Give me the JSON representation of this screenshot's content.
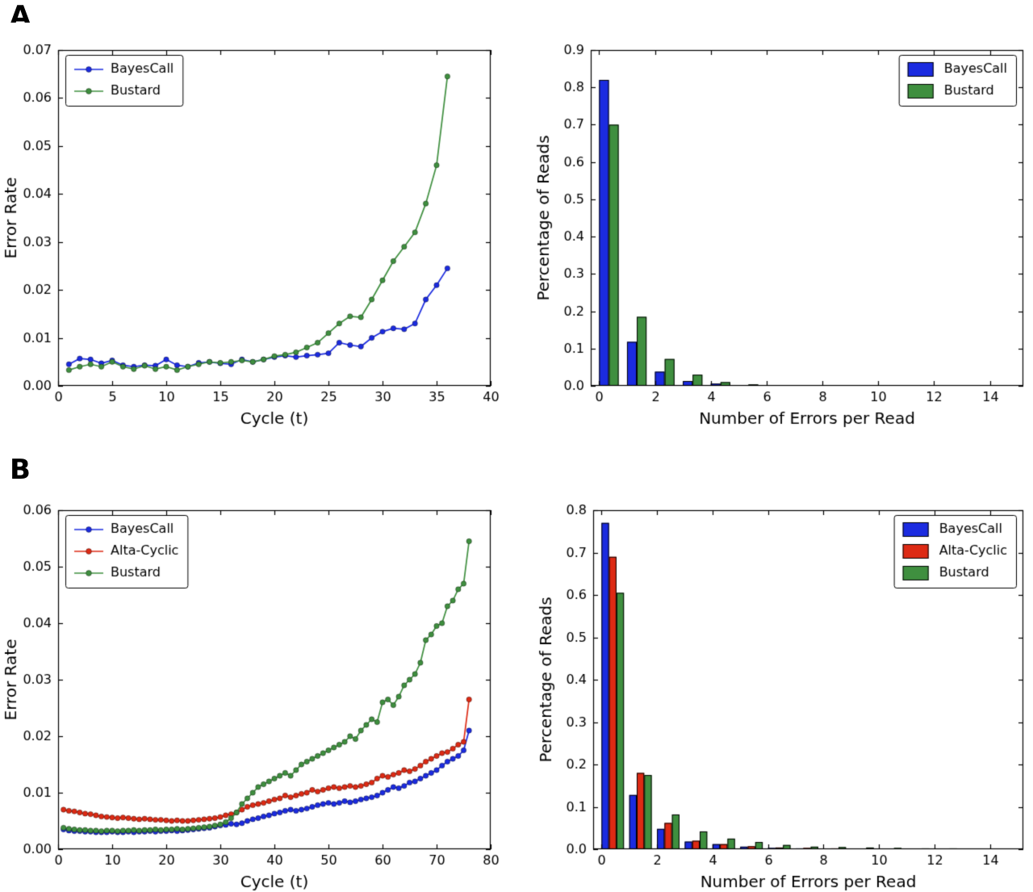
{
  "panels": [
    {
      "label": "A"
    },
    {
      "label": "B"
    }
  ],
  "colors": {
    "bayescall": "#1b2be0",
    "alta_cyclic": "#dd2a14",
    "bustard": "#3f8f3f",
    "axis": "#000000",
    "background": "#ffffff"
  },
  "chart_data": [
    {
      "id": "panel-a-error-rate-by-cycle",
      "type": "line",
      "title": "",
      "xlabel": "Cycle (t)",
      "ylabel": "Error Rate",
      "xlim": [
        0,
        40
      ],
      "ylim": [
        0,
        0.07
      ],
      "xticks": [
        0,
        5,
        10,
        15,
        20,
        25,
        30,
        35,
        40
      ],
      "yticks": [
        0,
        0.01,
        0.02,
        0.03,
        0.04,
        0.05,
        0.06,
        0.07
      ],
      "ytick_decimals": 2,
      "x_start": 1,
      "grid": false,
      "legend": "top-left",
      "series": [
        {
          "name": "BayesCall",
          "color": "#1b2be0",
          "values": [
            0.0045,
            0.0057,
            0.0055,
            0.0047,
            0.0053,
            0.0043,
            0.004,
            0.0043,
            0.0042,
            0.0055,
            0.0043,
            0.004,
            0.0048,
            0.005,
            0.0047,
            0.0045,
            0.0055,
            0.005,
            0.0055,
            0.006,
            0.0063,
            0.006,
            0.0063,
            0.0065,
            0.0068,
            0.009,
            0.0085,
            0.0082,
            0.01,
            0.0113,
            0.012,
            0.0118,
            0.013,
            0.018,
            0.021,
            0.0245
          ]
        },
        {
          "name": "Bustard",
          "color": "#3f8f3f",
          "values": [
            0.0033,
            0.004,
            0.0045,
            0.004,
            0.005,
            0.004,
            0.0035,
            0.0042,
            0.0035,
            0.004,
            0.0033,
            0.004,
            0.0045,
            0.005,
            0.0048,
            0.005,
            0.0053,
            0.005,
            0.0055,
            0.0062,
            0.0065,
            0.007,
            0.008,
            0.009,
            0.011,
            0.013,
            0.0145,
            0.0143,
            0.018,
            0.022,
            0.026,
            0.029,
            0.032,
            0.038,
            0.046,
            0.0645
          ]
        }
      ]
    },
    {
      "id": "panel-a-errors-per-read",
      "type": "bar",
      "title": "",
      "xlabel": "Number of Errors per Read",
      "ylabel": "Percentage of Reads",
      "xlim": [
        -0.3,
        15.2
      ],
      "ylim": [
        0,
        0.9
      ],
      "xticks": [
        0,
        2,
        4,
        6,
        8,
        10,
        12,
        14
      ],
      "yticks": [
        0,
        0.1,
        0.2,
        0.3,
        0.4,
        0.5,
        0.6,
        0.7,
        0.8,
        0.9
      ],
      "ytick_decimals": 1,
      "bar_width": 0.35,
      "categories": [
        0,
        1,
        2,
        3,
        4,
        5,
        6,
        7,
        8,
        9,
        10,
        11,
        12,
        13,
        14
      ],
      "grid": false,
      "legend": "top-right",
      "series": [
        {
          "name": "BayesCall",
          "color": "#1b2be0",
          "values": [
            0.82,
            0.118,
            0.038,
            0.013,
            0.006,
            0.002,
            0.001,
            0.0005,
            0,
            0,
            0,
            0,
            0,
            0,
            0
          ]
        },
        {
          "name": "Bustard",
          "color": "#3f8f3f",
          "values": [
            0.7,
            0.185,
            0.072,
            0.03,
            0.01,
            0.004,
            0.002,
            0.001,
            0,
            0,
            0,
            0,
            0,
            0,
            0
          ]
        }
      ]
    },
    {
      "id": "panel-b-error-rate-by-cycle",
      "type": "line",
      "title": "",
      "xlabel": "Cycle (t)",
      "ylabel": "Error Rate",
      "xlim": [
        0,
        80
      ],
      "ylim": [
        0,
        0.06
      ],
      "xticks": [
        0,
        10,
        20,
        30,
        40,
        50,
        60,
        70,
        80
      ],
      "yticks": [
        0,
        0.01,
        0.02,
        0.03,
        0.04,
        0.05,
        0.06
      ],
      "ytick_decimals": 2,
      "x_start": 1,
      "grid": false,
      "legend": "top-left",
      "series": [
        {
          "name": "BayesCall",
          "color": "#1b2be0",
          "values": [
            0.0035,
            0.0033,
            0.0032,
            0.0032,
            0.0031,
            0.0031,
            0.003,
            0.003,
            0.003,
            0.0031,
            0.003,
            0.003,
            0.0031,
            0.003,
            0.0031,
            0.0031,
            0.0032,
            0.0031,
            0.0032,
            0.0032,
            0.0033,
            0.0032,
            0.0033,
            0.0034,
            0.0035,
            0.0036,
            0.0037,
            0.0038,
            0.004,
            0.0042,
            0.0043,
            0.0045,
            0.0044,
            0.0046,
            0.005,
            0.0053,
            0.0055,
            0.0058,
            0.006,
            0.0063,
            0.0065,
            0.0068,
            0.007,
            0.0068,
            0.007,
            0.0072,
            0.0075,
            0.0078,
            0.008,
            0.0082,
            0.008,
            0.0082,
            0.0085,
            0.0083,
            0.0085,
            0.0088,
            0.009,
            0.0092,
            0.0095,
            0.01,
            0.0105,
            0.011,
            0.0108,
            0.0112,
            0.0118,
            0.012,
            0.0125,
            0.013,
            0.0135,
            0.014,
            0.0148,
            0.0155,
            0.016,
            0.0165,
            0.0175,
            0.021
          ]
        },
        {
          "name": "Alta-Cyclic",
          "color": "#dd2a14",
          "values": [
            0.007,
            0.0068,
            0.0067,
            0.0065,
            0.0063,
            0.0062,
            0.006,
            0.0058,
            0.0057,
            0.0056,
            0.0055,
            0.0056,
            0.0055,
            0.0054,
            0.0053,
            0.0054,
            0.0053,
            0.0052,
            0.0052,
            0.0051,
            0.005,
            0.0051,
            0.005,
            0.005,
            0.0051,
            0.0052,
            0.0053,
            0.0054,
            0.0055,
            0.0057,
            0.006,
            0.0062,
            0.0065,
            0.007,
            0.0075,
            0.0078,
            0.008,
            0.0082,
            0.0085,
            0.0088,
            0.009,
            0.0095,
            0.0092,
            0.0095,
            0.0098,
            0.01,
            0.0105,
            0.0102,
            0.0105,
            0.0108,
            0.011,
            0.0108,
            0.011,
            0.0112,
            0.011,
            0.0112,
            0.0115,
            0.0118,
            0.0125,
            0.013,
            0.0128,
            0.0132,
            0.0135,
            0.014,
            0.0138,
            0.0142,
            0.0148,
            0.0155,
            0.016,
            0.0165,
            0.017,
            0.0172,
            0.0178,
            0.0185,
            0.019,
            0.0265
          ]
        },
        {
          "name": "Bustard",
          "color": "#3f8f3f",
          "values": [
            0.0038,
            0.0036,
            0.0035,
            0.0034,
            0.0034,
            0.0033,
            0.0033,
            0.0032,
            0.0033,
            0.0033,
            0.0032,
            0.0033,
            0.0033,
            0.0034,
            0.0033,
            0.0034,
            0.0034,
            0.0035,
            0.0034,
            0.0035,
            0.0035,
            0.0036,
            0.0035,
            0.0036,
            0.0037,
            0.0038,
            0.0039,
            0.004,
            0.0042,
            0.0044,
            0.0048,
            0.0055,
            0.0065,
            0.008,
            0.009,
            0.01,
            0.011,
            0.0115,
            0.012,
            0.0125,
            0.013,
            0.0135,
            0.013,
            0.014,
            0.015,
            0.0155,
            0.016,
            0.0165,
            0.017,
            0.0175,
            0.018,
            0.0185,
            0.019,
            0.02,
            0.0195,
            0.021,
            0.022,
            0.023,
            0.0225,
            0.026,
            0.0265,
            0.0255,
            0.027,
            0.029,
            0.03,
            0.031,
            0.033,
            0.037,
            0.038,
            0.0395,
            0.04,
            0.043,
            0.044,
            0.046,
            0.047,
            0.0545
          ]
        }
      ]
    },
    {
      "id": "panel-b-errors-per-read",
      "type": "bar",
      "title": "",
      "xlabel": "Number of Errors per Read",
      "ylabel": "Percentage of Reads",
      "xlim": [
        -0.3,
        15.2
      ],
      "ylim": [
        0,
        0.8
      ],
      "xticks": [
        0,
        2,
        4,
        6,
        8,
        10,
        12,
        14
      ],
      "yticks": [
        0,
        0.1,
        0.2,
        0.3,
        0.4,
        0.5,
        0.6,
        0.7,
        0.8
      ],
      "ytick_decimals": 1,
      "bar_width": 0.27,
      "categories": [
        0,
        1,
        2,
        3,
        4,
        5,
        6,
        7,
        8,
        9,
        10,
        11,
        12,
        13,
        14
      ],
      "grid": false,
      "legend": "top-right",
      "series": [
        {
          "name": "BayesCall",
          "color": "#1b2be0",
          "values": [
            0.77,
            0.128,
            0.048,
            0.018,
            0.012,
            0.006,
            0.003,
            0.002,
            0.001,
            0.001,
            0.001,
            0,
            0,
            0,
            0
          ]
        },
        {
          "name": "Alta-Cyclic",
          "color": "#dd2a14",
          "values": [
            0.69,
            0.18,
            0.062,
            0.02,
            0.012,
            0.007,
            0.004,
            0.003,
            0.002,
            0.001,
            0.001,
            0.001,
            0,
            0,
            0
          ]
        },
        {
          "name": "Bustard",
          "color": "#3f8f3f",
          "values": [
            0.605,
            0.175,
            0.082,
            0.042,
            0.025,
            0.017,
            0.01,
            0.006,
            0.005,
            0.004,
            0.003,
            0.002,
            0.002,
            0.001,
            0.001
          ]
        }
      ]
    }
  ]
}
